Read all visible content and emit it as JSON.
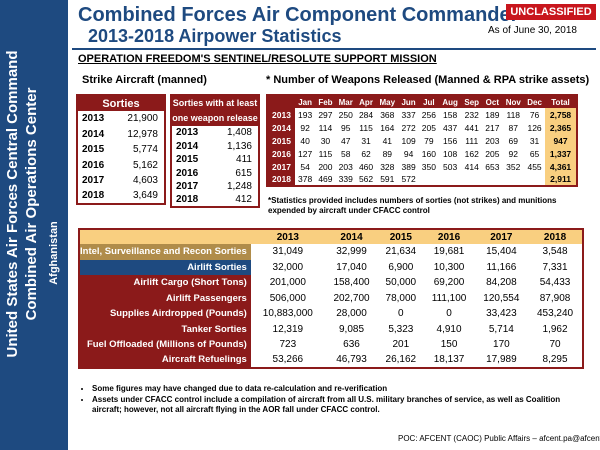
{
  "header": {
    "title_line1": "Combined Forces Air Component Commander",
    "title_line2": "2013-2018 Airpower Statistics",
    "classification": "UNCLASSIFIED",
    "as_of": "As of June 30, 2018"
  },
  "side_band": {
    "line1": "United States Air Forces Central Command",
    "line2": "Combined Air Operations Center",
    "theater": "Afghanistan"
  },
  "operation_name": "OPERATION FREEDOM'S SENTINEL/RESOLUTE SUPPORT MISSION",
  "strike_header": "Strike Aircraft (manned)",
  "weapons_header": "* Number of Weapons Released (Manned & RPA strike assets)",
  "sorties": {
    "title": "Sorties",
    "rows": [
      {
        "year": "2013",
        "value": "21,900"
      },
      {
        "year": "2014",
        "value": "12,978"
      },
      {
        "year": "2015",
        "value": "5,774"
      },
      {
        "year": "2016",
        "value": "5,162"
      },
      {
        "year": "2017",
        "value": "4,603"
      },
      {
        "year": "2018",
        "value": "3,649"
      }
    ]
  },
  "weapon_sorties": {
    "title_line1": "Sorties with at least",
    "title_line2": "one weapon release",
    "rows": [
      {
        "year": "2013",
        "value": "1,408"
      },
      {
        "year": "2014",
        "value": "1,136"
      },
      {
        "year": "2015",
        "value": "411"
      },
      {
        "year": "2016",
        "value": "615"
      },
      {
        "year": "2017",
        "value": "1,248"
      },
      {
        "year": "2018",
        "value": "412"
      }
    ]
  },
  "weapons": {
    "columns": [
      "Jan",
      "Feb",
      "Mar",
      "Apr",
      "May",
      "Jun",
      "Jul",
      "Aug",
      "Sep",
      "Oct",
      "Nov",
      "Dec",
      "Total"
    ],
    "rows": [
      {
        "year": "2013",
        "cells": [
          "193",
          "297",
          "250",
          "284",
          "368",
          "337",
          "256",
          "158",
          "232",
          "189",
          "118",
          "76",
          "2,758"
        ]
      },
      {
        "year": "2014",
        "cells": [
          "92",
          "114",
          "95",
          "115",
          "164",
          "272",
          "205",
          "437",
          "441",
          "217",
          "87",
          "126",
          "2,365"
        ]
      },
      {
        "year": "2015",
        "cells": [
          "40",
          "30",
          "47",
          "31",
          "41",
          "109",
          "79",
          "156",
          "111",
          "203",
          "69",
          "31",
          "947"
        ]
      },
      {
        "year": "2016",
        "cells": [
          "127",
          "115",
          "58",
          "62",
          "89",
          "94",
          "160",
          "108",
          "162",
          "205",
          "92",
          "65",
          "1,337"
        ]
      },
      {
        "year": "2017",
        "cells": [
          "54",
          "200",
          "203",
          "460",
          "328",
          "389",
          "350",
          "503",
          "414",
          "653",
          "352",
          "455",
          "4,361"
        ]
      },
      {
        "year": "2018",
        "cells": [
          "378",
          "469",
          "339",
          "562",
          "591",
          "572",
          "",
          "",
          "",
          "",
          "",
          "",
          "2,911"
        ]
      }
    ]
  },
  "weapons_note": "*Statistics provided includes numbers of sorties (not strikes) and munitions expended by aircraft under CFACC control",
  "stats": {
    "years": [
      "2013",
      "2014",
      "2015",
      "2016",
      "2017",
      "2018"
    ],
    "rows": [
      {
        "label": "Intel, Surveillance and Recon Sorties",
        "values": [
          "31,049",
          "32,999",
          "21,634",
          "19,681",
          "15,404",
          "3,548"
        ]
      },
      {
        "label": "Airlift Sorties",
        "values": [
          "32,000",
          "17,040",
          "6,900",
          "10,300",
          "11,166",
          "7,331"
        ]
      },
      {
        "label": "Airlift Cargo (Short Tons)",
        "values": [
          "201,000",
          "158,400",
          "50,000",
          "69,200",
          "84,208",
          "54,433"
        ]
      },
      {
        "label": "Airlift Passengers",
        "values": [
          "506,000",
          "202,700",
          "78,000",
          "111,100",
          "120,554",
          "87,908"
        ]
      },
      {
        "label": "Supplies Airdropped (Pounds)",
        "values": [
          "10,883,000",
          "28,000",
          "0",
          "0",
          "33,423",
          "453,240"
        ]
      },
      {
        "label": "Tanker Sorties",
        "values": [
          "12,319",
          "9,085",
          "5,323",
          "4,910",
          "5,714",
          "1,962"
        ]
      },
      {
        "label": "Fuel Offloaded (Millions of Pounds)",
        "values": [
          "723",
          "636",
          "201",
          "150",
          "170",
          "70"
        ]
      },
      {
        "label": "Aircraft Refuelings",
        "values": [
          "53,266",
          "46,793",
          "26,162",
          "18,137",
          "17,989",
          "8,295"
        ]
      }
    ]
  },
  "bullets": [
    "Some figures may have changed due to data re-calculation and re-verification",
    "Assets under CFACC control include a compilation of aircraft from all U.S. military branches of service, as well as Coalition aircraft; however, not all aircraft flying in the AOR fall under CFACC control."
  ],
  "poc": "POC: AFCENT (CAOC) Public Affairs – afcent.pa@afcent.af.mil",
  "colors": {
    "navy": "#1e4a80",
    "maroon": "#8b1a1a",
    "tan": "#f9cf80",
    "red": "#c8161d"
  }
}
